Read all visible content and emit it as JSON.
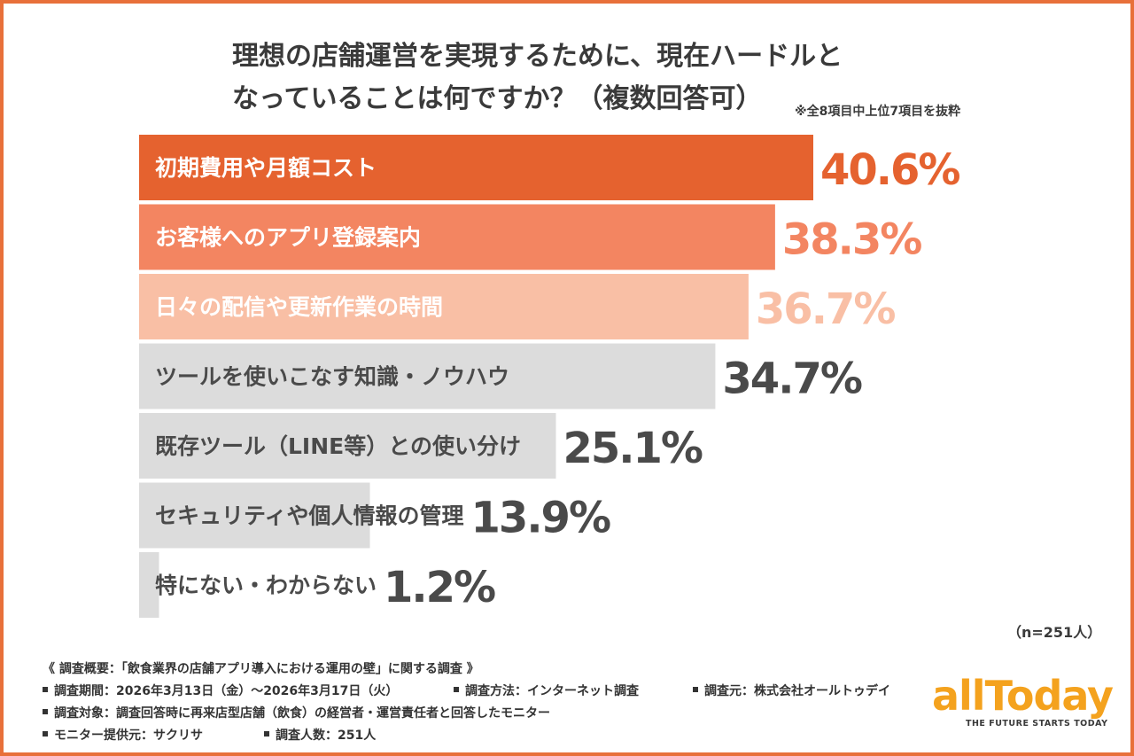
{
  "title_line1": "理想の店舗運営を実現するために、現在ハードルと",
  "title_line2": "なっていることは何ですか？（複数回答可）",
  "note": "※全8項目中上位7項目を抜粋",
  "sample": "（n=251人）",
  "colors": {
    "bar1": "#e5622f",
    "bar2": "#f38561",
    "bar3": "#f9bfa5",
    "gray": "#dcdcdc",
    "val1": "#e5622f",
    "val2": "#f38561",
    "val3": "#f9bfa5",
    "valgray": "#4a4a4a",
    "border": "#e8703a",
    "logo": "#f4a21e"
  },
  "chart_data": {
    "type": "bar",
    "orientation": "horizontal",
    "categories": [
      "初期費用や月額コスト",
      "お客様へのアプリ登録案内",
      "日々の配信や更新作業の時間",
      "ツールを使いこなす知識・ノウハウ",
      "既存ツール（LINE等）との使い分け",
      "セキュリティや個人情報の管理",
      "特にない・わからない"
    ],
    "values": [
      40.6,
      38.3,
      36.7,
      34.7,
      25.1,
      13.9,
      1.2
    ],
    "value_labels": [
      "40.6%",
      "38.3%",
      "36.7%",
      "34.7%",
      "25.1%",
      "13.9%",
      "1.2%"
    ],
    "unit": "%",
    "xlim": [
      0,
      46
    ],
    "grid": false
  },
  "footer": {
    "heading": "《 調査概要：「飲食業界の店舗アプリ導入における運用の壁」に関する調査 》",
    "period": "調査期間：2026年3月13日（金）〜2026年3月17日（火）",
    "method": "調査方法：インターネット調査",
    "source": "調査元：株式会社オールトゥデイ",
    "target": "調査対象：調査回答時に再来店型店舗（飲食）の経営者・運営責任者と回答したモニター",
    "provider": "モニター提供元：サクリサ",
    "count": "調査人数：251人"
  },
  "logo": {
    "name": "allToday",
    "tagline": "THE FUTURE STARTS TODAY"
  }
}
